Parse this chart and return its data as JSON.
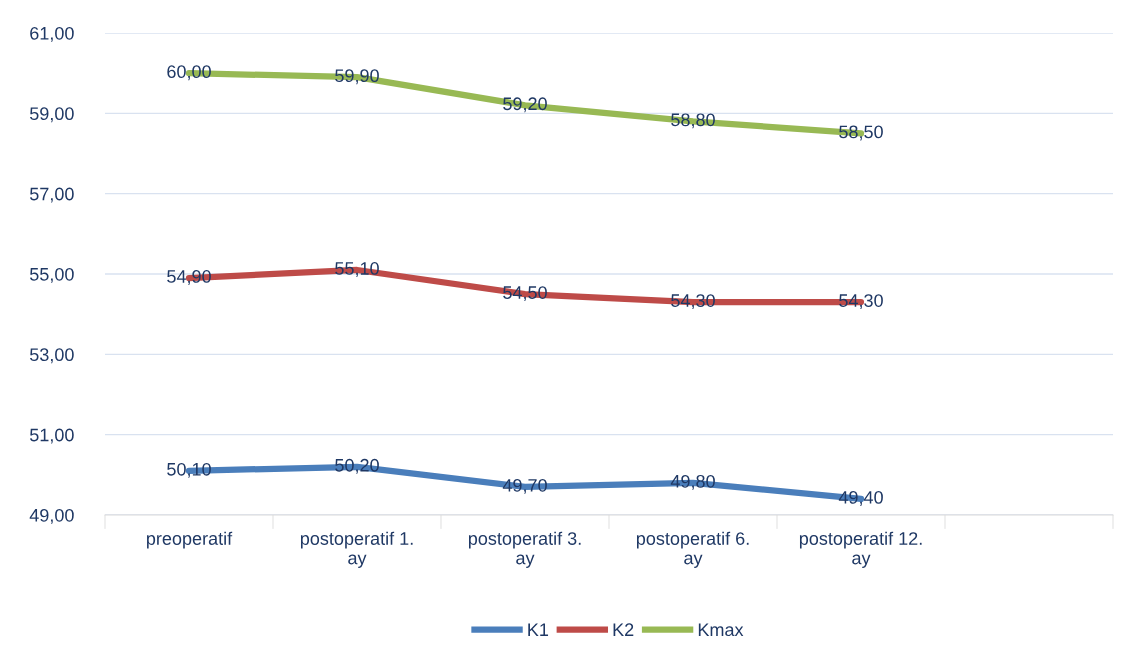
{
  "chart_data": {
    "type": "line",
    "categories": [
      "preoperatif",
      "postoperatif 1. ay",
      "postoperatif 3. ay",
      "postoperatif 6. ay",
      "postoperatif 12. ay",
      null
    ],
    "series": [
      {
        "name": "K1",
        "color": "#4a7ebb",
        "values": [
          50.1,
          50.2,
          49.7,
          49.8,
          49.4,
          null
        ],
        "value_labels": [
          "50,10",
          "50,20",
          "49,70",
          "49,80",
          "49,40",
          null
        ]
      },
      {
        "name": "K2",
        "color": "#be4b48",
        "values": [
          54.9,
          55.1,
          54.5,
          54.3,
          54.3,
          null
        ],
        "value_labels": [
          "54,90",
          "55,10",
          "54,50",
          "54,30",
          "54,30",
          null
        ]
      },
      {
        "name": "Kmax",
        "color": "#98b954",
        "values": [
          60.0,
          59.9,
          59.2,
          58.8,
          58.5,
          null
        ],
        "value_labels": [
          "60,00",
          "59,90",
          "59,20",
          "58,80",
          "58,50",
          null
        ]
      }
    ],
    "ylim": [
      49,
      61
    ],
    "yticks": [
      {
        "value": 49,
        "label": "49,00"
      },
      {
        "value": 51,
        "label": "51,00"
      },
      {
        "value": 53,
        "label": "53,00"
      },
      {
        "value": 55,
        "label": "55,00"
      },
      {
        "value": 57,
        "label": "57,00"
      },
      {
        "value": 59,
        "label": "59,00"
      },
      {
        "value": 61,
        "label": "61,00"
      }
    ],
    "grid": "y",
    "legend": "bottom",
    "marker": "none",
    "line_style": "solid"
  }
}
